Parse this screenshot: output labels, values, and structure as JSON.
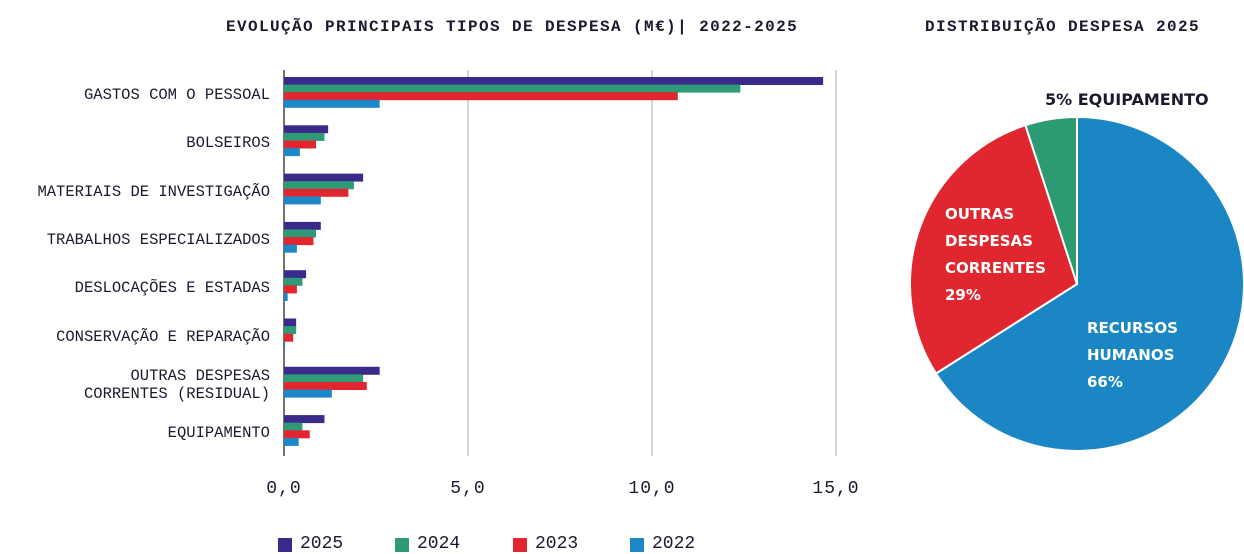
{
  "chart_data": [
    {
      "type": "bar",
      "orientation": "horizontal",
      "title": "EVOLUÇÃO PRINCIPAIS TIPOS DE DESPESA (M€)| 2022-2025",
      "categories": [
        "GASTOS COM O PESSOAL",
        "BOLSEIROS",
        "MATERIAIS DE INVESTIGAÇÃO",
        "TRABALHOS ESPECIALIZADOS",
        "DESLOCAÇÕES E ESTADAS",
        "CONSERVAÇÃO E REPARAÇÃO",
        "OUTRAS DESPESAS\nCORRENTES (RESIDUAL)",
        "EQUIPAMENTO"
      ],
      "series": [
        {
          "name": "2025",
          "color": "#3a2a8a",
          "values": [
            14.65,
            1.2,
            2.15,
            1.0,
            0.6,
            0.33,
            2.6,
            1.1
          ]
        },
        {
          "name": "2024",
          "color": "#2f9a78",
          "values": [
            12.4,
            1.1,
            1.9,
            0.87,
            0.5,
            0.33,
            2.15,
            0.5
          ]
        },
        {
          "name": "2023",
          "color": "#e2262f",
          "values": [
            10.7,
            0.87,
            1.75,
            0.8,
            0.35,
            0.25,
            2.25,
            0.7
          ]
        },
        {
          "name": "2022",
          "color": "#1d87c7",
          "values": [
            2.6,
            0.43,
            1.0,
            0.35,
            0.1,
            0.03,
            1.3,
            0.4
          ]
        }
      ],
      "xlim": [
        0,
        15
      ],
      "xticks": [
        {
          "value": 0,
          "label": "0,0"
        },
        {
          "value": 5,
          "label": "5,0"
        },
        {
          "value": 10,
          "label": "10,0"
        },
        {
          "value": 15,
          "label": "15,0"
        }
      ],
      "grid": true,
      "legend": "bottom"
    },
    {
      "type": "pie",
      "title": "DISTRIBUIÇÃO DESPESA 2025",
      "labels": [
        "RECURSOS\nHUMANOS",
        "OUTRAS\nDESPESAS\nCORRENTES",
        "EQUIPAMENTO"
      ],
      "values": [
        66,
        29,
        5
      ],
      "value_labels": [
        "66%",
        "29%",
        "5%"
      ],
      "colors": [
        "#1a86c4",
        "#e0262e",
        "#2e9a72"
      ]
    }
  ]
}
